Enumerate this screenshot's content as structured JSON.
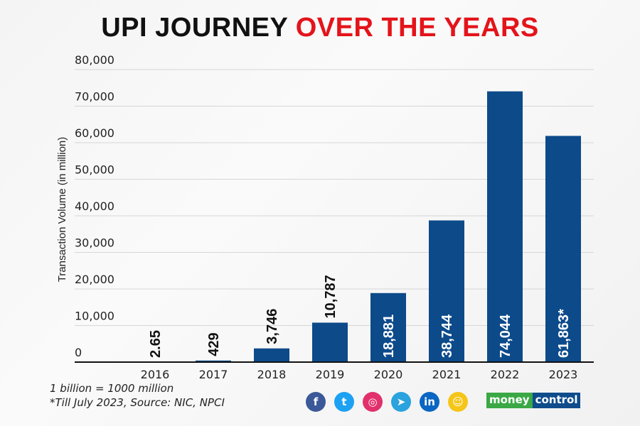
{
  "title": {
    "part1": "UPI JOURNEY",
    "part2": "OVER THE YEARS"
  },
  "chart_data": {
    "type": "bar",
    "title": "UPI JOURNEY OVER THE YEARS",
    "ylabel": "Transaction Volume (in million)",
    "xlabel": "",
    "ylim": [
      0,
      80000
    ],
    "yticks": [
      0,
      10000,
      20000,
      30000,
      40000,
      50000,
      60000,
      70000,
      80000
    ],
    "ytick_labels": [
      "0",
      "10,000",
      "20,000",
      "30,000",
      "40,000",
      "50,000",
      "60,000",
      "70,000",
      "80,000"
    ],
    "grid": true,
    "categories": [
      "2016",
      "2017",
      "2018",
      "2019",
      "2020",
      "2021",
      "2022",
      "2023"
    ],
    "values": [
      2.65,
      429,
      3746,
      10787,
      18881,
      38744,
      74044,
      61863
    ],
    "data_labels": [
      "2.65",
      "429",
      "3,746",
      "10,787",
      "18,881",
      "38,744",
      "74,044",
      "61,863*"
    ],
    "bar_color": "#0c4a8a"
  },
  "footnotes": [
    "1 billion = 1000 million",
    "*Till July 2023, Source: NIC, NPCI"
  ],
  "social": [
    {
      "icon": "facebook-icon",
      "glyph": "f",
      "color": "#3b5998"
    },
    {
      "icon": "twitter-icon",
      "glyph": "t",
      "color": "#1da1f2"
    },
    {
      "icon": "instagram-icon",
      "glyph": "◎",
      "color": "#e1306c"
    },
    {
      "icon": "telegram-icon",
      "glyph": "➤",
      "color": "#2aa3de"
    },
    {
      "icon": "linkedin-icon",
      "glyph": "in",
      "color": "#0a66c2"
    },
    {
      "icon": "snapchat-icon",
      "glyph": "☺",
      "color": "#f5c518"
    }
  ],
  "brand": {
    "part1": "money",
    "part2": "control"
  }
}
